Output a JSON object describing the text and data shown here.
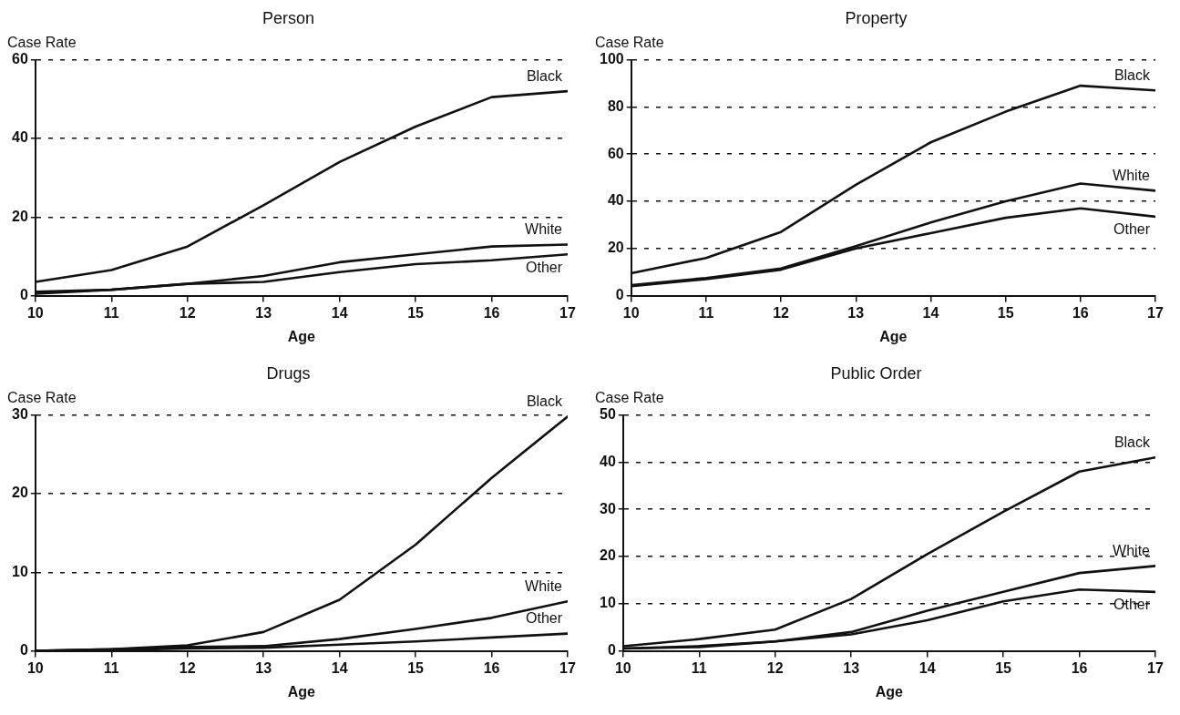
{
  "chart_data": [
    {
      "type": "line",
      "title": "Person",
      "ylabel": "Case Rate",
      "xlabel": "Age",
      "x": [
        10,
        11,
        12,
        13,
        14,
        15,
        16,
        17
      ],
      "xlim": [
        10,
        17
      ],
      "xticks": [
        10,
        11,
        12,
        13,
        14,
        15,
        16,
        17
      ],
      "ylim": [
        0,
        60
      ],
      "yticks": [
        0,
        20,
        40,
        60
      ],
      "grid": "y",
      "legend": false,
      "marker": "none",
      "line_style": "solid",
      "series": [
        {
          "name": "Black",
          "color": "#111111",
          "values": [
            3.5,
            6.5,
            12.5,
            23,
            34,
            43,
            50.5,
            52
          ]
        },
        {
          "name": "White",
          "color": "#111111",
          "values": [
            1,
            1.5,
            3,
            5,
            8.5,
            10.5,
            12.5,
            13
          ]
        },
        {
          "name": "Other",
          "color": "#111111",
          "values": [
            0.5,
            1.5,
            3,
            3.5,
            6,
            8,
            9,
            10.5
          ]
        }
      ]
    },
    {
      "type": "line",
      "title": "Property",
      "ylabel": "Case Rate",
      "xlabel": "Age",
      "x": [
        10,
        11,
        12,
        13,
        14,
        15,
        16,
        17
      ],
      "xlim": [
        10,
        17
      ],
      "xticks": [
        10,
        11,
        12,
        13,
        14,
        15,
        16,
        17
      ],
      "ylim": [
        0,
        100
      ],
      "yticks": [
        0,
        20,
        40,
        60,
        80,
        100
      ],
      "grid": "y",
      "legend": false,
      "marker": "none",
      "line_style": "solid",
      "series": [
        {
          "name": "Black",
          "color": "#111111",
          "values": [
            9.5,
            16,
            27,
            47,
            65,
            78,
            89,
            87
          ]
        },
        {
          "name": "White",
          "color": "#111111",
          "values": [
            4.5,
            7.5,
            11.5,
            21,
            31,
            40,
            47.5,
            44.5
          ]
        },
        {
          "name": "Other",
          "color": "#111111",
          "values": [
            4,
            7,
            11,
            20,
            26.5,
            33,
            37,
            33.5
          ]
        }
      ]
    },
    {
      "type": "line",
      "title": "Drugs",
      "ylabel": "Case Rate",
      "xlabel": "Age",
      "x": [
        10,
        11,
        12,
        13,
        14,
        15,
        16,
        17
      ],
      "xlim": [
        10,
        17
      ],
      "xticks": [
        10,
        11,
        12,
        13,
        14,
        15,
        16,
        17
      ],
      "ylim": [
        0,
        30
      ],
      "yticks": [
        0,
        10,
        20,
        30
      ],
      "grid": "y",
      "legend": false,
      "marker": "none",
      "line_style": "solid",
      "series": [
        {
          "name": "Black",
          "color": "#111111",
          "values": [
            0,
            0.2,
            0.7,
            2.4,
            6.5,
            13.5,
            22,
            29.8
          ]
        },
        {
          "name": "White",
          "color": "#111111",
          "values": [
            0,
            0.2,
            0.5,
            0.6,
            1.5,
            2.8,
            4.2,
            6.3
          ]
        },
        {
          "name": "Other",
          "color": "#111111",
          "values": [
            0,
            0.1,
            0.3,
            0.4,
            0.8,
            1.2,
            1.7,
            2.2
          ]
        }
      ]
    },
    {
      "type": "line",
      "title": "Public Order",
      "ylabel": "Case Rate",
      "xlabel": "Age",
      "x": [
        10,
        11,
        12,
        13,
        14,
        15,
        16,
        17
      ],
      "xlim": [
        10,
        17
      ],
      "xticks": [
        10,
        11,
        12,
        13,
        14,
        15,
        16,
        17
      ],
      "ylim": [
        0,
        50
      ],
      "yticks": [
        0,
        10,
        20,
        30,
        40,
        50
      ],
      "grid": "y",
      "legend": false,
      "marker": "none",
      "line_style": "solid",
      "series": [
        {
          "name": "Black",
          "color": "#111111",
          "values": [
            1,
            2.5,
            4.5,
            11,
            20.5,
            29.5,
            38,
            41
          ]
        },
        {
          "name": "White",
          "color": "#111111",
          "values": [
            0.5,
            1,
            2,
            4,
            8.5,
            12.5,
            16.5,
            18
          ]
        },
        {
          "name": "Other",
          "color": "#111111",
          "values": [
            0.5,
            0.8,
            2,
            3.5,
            6.5,
            10.5,
            13,
            12.5
          ]
        }
      ]
    }
  ]
}
